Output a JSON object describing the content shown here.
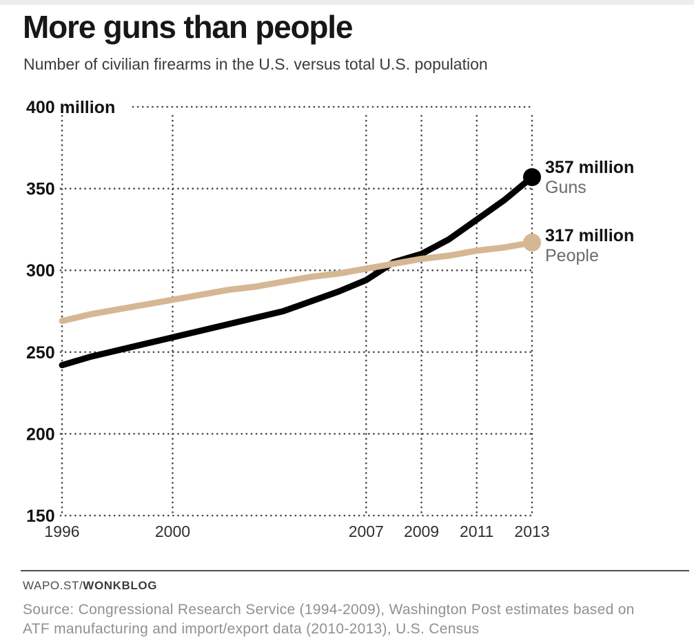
{
  "chart_data": {
    "type": "line",
    "title": "More guns than people",
    "subtitle": "Number of civilian firearms in the U.S. versus total U.S. population",
    "xlabel": "",
    "ylabel": "million",
    "xlim": [
      1996,
      2013
    ],
    "ylim": [
      150,
      400
    ],
    "grid": "dotted-both-axes",
    "legend_position": "end-of-line-labels-right",
    "x": [
      1996,
      1997,
      1998,
      1999,
      2000,
      2001,
      2002,
      2003,
      2004,
      2005,
      2006,
      2007,
      2008,
      2009,
      2010,
      2011,
      2012,
      2013
    ],
    "series": [
      {
        "name": "Guns",
        "color": "#000000",
        "values": [
          242,
          247,
          251,
          255,
          259,
          263,
          267,
          271,
          275,
          281,
          287,
          294,
          305,
          310,
          319,
          331,
          343,
          357
        ],
        "end_value_label": "357 million",
        "end_name_label": "Guns"
      },
      {
        "name": "People",
        "color": "#d6b794",
        "values": [
          269,
          273,
          276,
          279,
          282,
          285,
          288,
          290,
          293,
          296,
          298,
          301,
          304,
          307,
          309,
          312,
          314,
          317
        ],
        "end_value_label": "317 million",
        "end_name_label": "People"
      }
    ],
    "x_ticks": [
      {
        "value": 1996,
        "label": "1996"
      },
      {
        "value": 2000,
        "label": "2000"
      },
      {
        "value": 2007,
        "label": "2007"
      },
      {
        "value": 2009,
        "label": "2009"
      },
      {
        "value": 2011,
        "label": "2011"
      },
      {
        "value": 2013,
        "label": "2013"
      }
    ],
    "y_ticks": [
      {
        "value": 400,
        "label": "400 million"
      },
      {
        "value": 350,
        "label": "350"
      },
      {
        "value": 300,
        "label": "300"
      },
      {
        "value": 250,
        "label": "250"
      },
      {
        "value": 200,
        "label": "200"
      },
      {
        "value": 150,
        "label": "150"
      }
    ],
    "annotations": {
      "guns": {
        "value": "357 million",
        "label": "Guns"
      },
      "people": {
        "value": "317 million",
        "label": "People"
      }
    },
    "colors": {
      "guns_line": "#000000",
      "people_line": "#d6b794",
      "gridline": "#474747",
      "axis_label": "#111111",
      "x_tick_label": "#2f2f2f"
    }
  },
  "footer": {
    "brand_prefix": "WAPO.ST/",
    "brand_bold": "WONKBLOG",
    "source": "Source: Congressional Research Service (1994-2009), Washington Post estimates based on ATF manufacturing and import/export data (2010-2013), U.S. Census",
    "source_lines": [
      "Source: Congressional Research Service (1994-2009), Washington Post estimates based on",
      "ATF manufacturing and import/export data (2010-2013), U.S. Census"
    ]
  }
}
